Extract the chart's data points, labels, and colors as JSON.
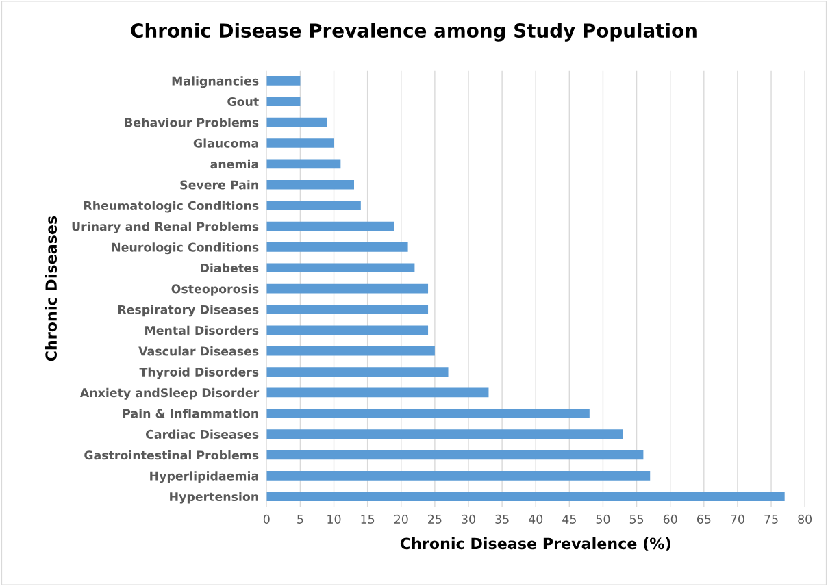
{
  "chart_data": {
    "type": "bar",
    "orientation": "horizontal",
    "title": "Chronic Disease Prevalence among Study Population",
    "xlabel": "Chronic Disease Prevalence (%)",
    "ylabel": "Chronic Diseases",
    "categories": [
      "Malignancies",
      "Gout",
      "Behaviour Problems",
      "Glaucoma",
      "anemia",
      "Severe Pain",
      "Rheumatologic Conditions",
      "Urinary and Renal Problems",
      "Neurologic Conditions",
      "Diabetes",
      "Osteoporosis",
      "Respiratory Diseases",
      "Mental Disorders",
      "Vascular Diseases",
      "Thyroid Disorders",
      "Anxiety andSleep Disorder",
      "Pain & Inflammation",
      "Cardiac Diseases",
      "Gastrointestinal Problems",
      "Hyperlipidaemia",
      "Hypertension"
    ],
    "values": [
      5,
      5,
      9,
      10,
      11,
      13,
      14,
      19,
      21,
      22,
      24,
      24,
      24,
      25,
      27,
      33,
      48,
      53,
      56,
      57,
      77
    ],
    "color": "#5b9bd5",
    "xlim": [
      0,
      80
    ],
    "xticks": [
      0,
      5,
      10,
      15,
      20,
      25,
      30,
      35,
      40,
      45,
      50,
      55,
      60,
      65,
      70,
      75,
      80
    ],
    "grid": "x",
    "legend": false
  }
}
